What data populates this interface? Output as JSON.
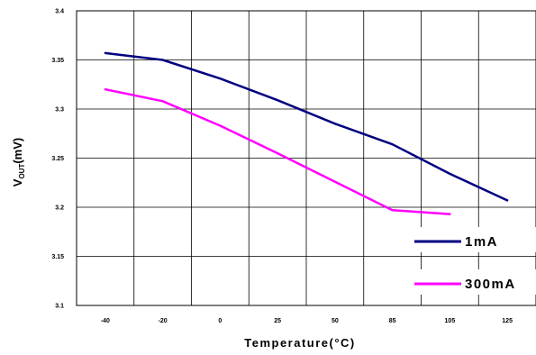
{
  "chart_data": {
    "type": "line",
    "x_tick_labels": [
      "-40",
      "-20",
      "0",
      "25",
      "50",
      "85",
      "105",
      "125"
    ],
    "y_tick_labels": [
      "3.1",
      "3.15",
      "3.2",
      "3.25",
      "3.3",
      "3.35",
      "3.4"
    ],
    "ylim": [
      3.1,
      3.4
    ],
    "xlabel": "Temperature(°C)",
    "ylabel": {
      "main": "V",
      "sub": "OUT",
      "suffix": "(mV)"
    },
    "grid": true,
    "legend_position": "bottom-right",
    "series": [
      {
        "name": "1mA",
        "color": "#000080",
        "points": [
          [
            -40,
            3.357
          ],
          [
            -20,
            3.35
          ],
          [
            0,
            3.331
          ],
          [
            25,
            3.309
          ],
          [
            50,
            3.285
          ],
          [
            85,
            3.264
          ],
          [
            105,
            3.234
          ],
          [
            125,
            3.207
          ]
        ]
      },
      {
        "name": "300mA",
        "color": "#ff00ff",
        "points": [
          [
            -40,
            3.32
          ],
          [
            -20,
            3.308
          ],
          [
            0,
            3.283
          ],
          [
            25,
            3.255
          ],
          [
            50,
            3.226
          ],
          [
            85,
            3.197
          ],
          [
            105,
            3.193
          ]
        ]
      }
    ]
  }
}
